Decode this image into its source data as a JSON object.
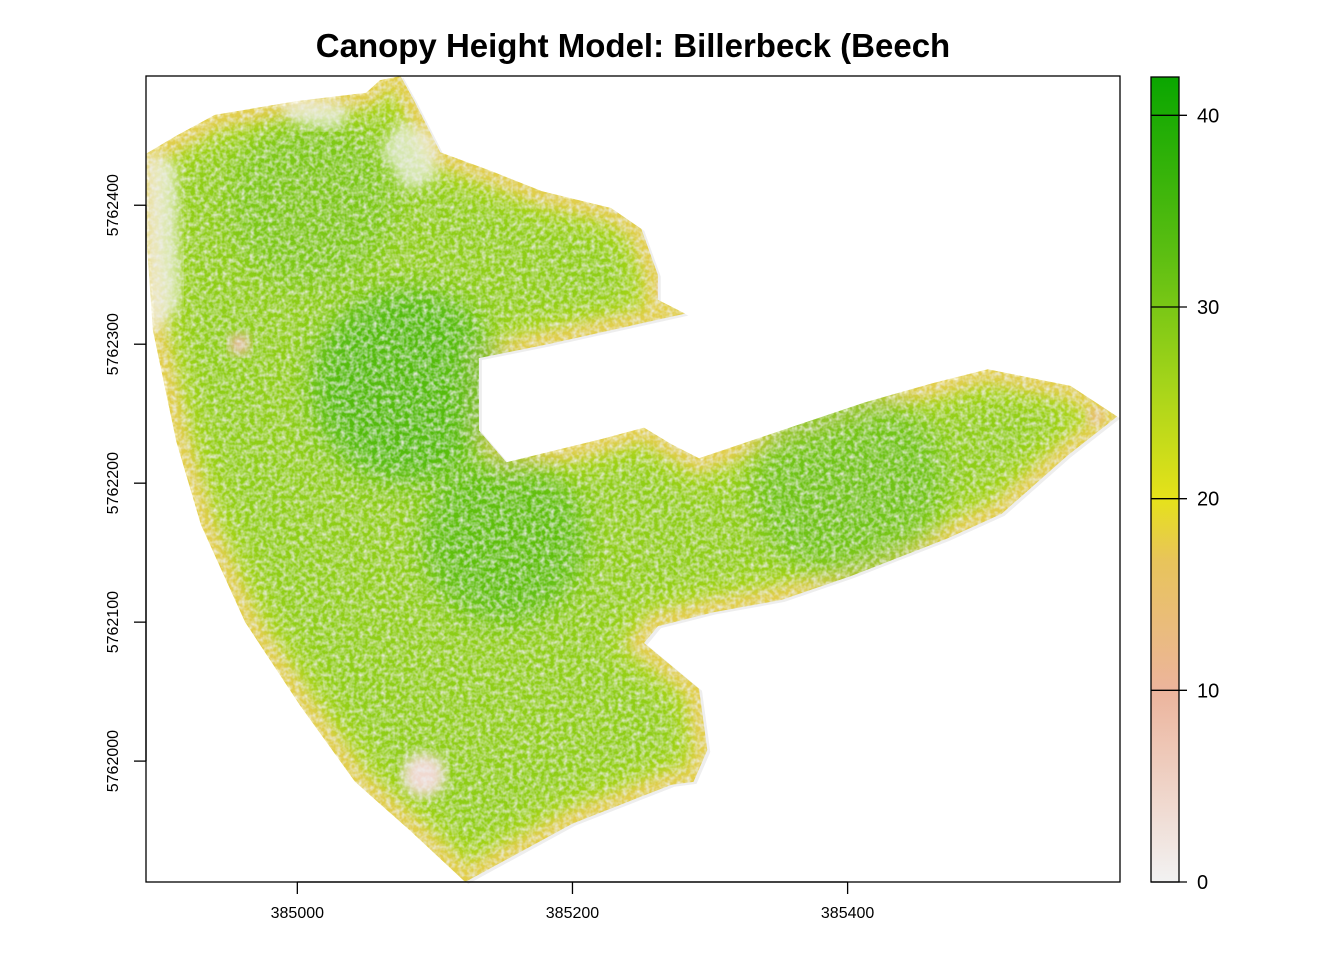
{
  "chart_data": {
    "type": "heatmap",
    "title": "Canopy Height Model: Billerbeck (Beech",
    "xlabel": "",
    "ylabel": "",
    "xlim": [
      384890,
      385598
    ],
    "ylim": [
      5761913,
      5762493
    ],
    "x_ticks": [
      385000,
      385200,
      385400
    ],
    "y_ticks": [
      5762000,
      5762100,
      5762200,
      5762300,
      5762400
    ],
    "x_tick_labels": [
      "385000",
      "385200",
      "385400"
    ],
    "y_tick_labels": [
      "5762000",
      "5762100",
      "5762200",
      "5762300",
      "5762400"
    ],
    "grid": false,
    "legend": {
      "placement": "right",
      "ticks": [
        0,
        10,
        20,
        30,
        40
      ],
      "tick_labels": [
        "0",
        "10",
        "20",
        "30",
        "40"
      ],
      "range": [
        0,
        42
      ],
      "colors": [
        "#f2f2f2",
        "#ecb49c",
        "#e8c45a",
        "#e6e21a",
        "#a4d41a",
        "#5cbe12",
        "#0aa600"
      ]
    },
    "forest_outline": [
      [
        384890,
        5762437
      ],
      [
        384912,
        5762450
      ],
      [
        384940,
        5762465
      ],
      [
        385000,
        5762475
      ],
      [
        385050,
        5762481
      ],
      [
        385060,
        5762490
      ],
      [
        385075,
        5762493
      ],
      [
        385085,
        5762475
      ],
      [
        385104,
        5762438
      ],
      [
        385140,
        5762425
      ],
      [
        385178,
        5762410
      ],
      [
        385228,
        5762398
      ],
      [
        385250,
        5762383
      ],
      [
        385262,
        5762350
      ],
      [
        385262,
        5762332
      ],
      [
        385282,
        5762322
      ],
      [
        385182,
        5762300
      ],
      [
        385132,
        5762290
      ],
      [
        385132,
        5762238
      ],
      [
        385152,
        5762215
      ],
      [
        385222,
        5762232
      ],
      [
        385252,
        5762240
      ],
      [
        385272,
        5762228
      ],
      [
        385292,
        5762218
      ],
      [
        385352,
        5762238
      ],
      [
        385412,
        5762258
      ],
      [
        385462,
        5762272
      ],
      [
        385502,
        5762282
      ],
      [
        385562,
        5762270
      ],
      [
        385596,
        5762248
      ],
      [
        385560,
        5762220
      ],
      [
        385512,
        5762178
      ],
      [
        385472,
        5762160
      ],
      [
        385402,
        5762133
      ],
      [
        385352,
        5762116
      ],
      [
        385302,
        5762107
      ],
      [
        385262,
        5762097
      ],
      [
        385252,
        5762085
      ],
      [
        385292,
        5762052
      ],
      [
        385298,
        5762008
      ],
      [
        385288,
        5761985
      ],
      [
        385272,
        5761983
      ],
      [
        385200,
        5761955
      ],
      [
        385122,
        5761913
      ],
      [
        385082,
        5761950
      ],
      [
        385042,
        5761985
      ],
      [
        385002,
        5762040
      ],
      [
        384962,
        5762100
      ],
      [
        384930,
        5762170
      ],
      [
        384912,
        5762230
      ],
      [
        384895,
        5762310
      ],
      [
        384890,
        5762380
      ]
    ],
    "canopy_gaps": [
      [
        [
          385080,
          5762410
        ],
        [
          385060,
          5762440
        ],
        [
          385075,
          5762460
        ],
        [
          385100,
          5762450
        ],
        [
          385102,
          5762420
        ]
      ],
      [
        [
          384890,
          5762310
        ],
        [
          384890,
          5762437
        ],
        [
          384895,
          5762437
        ],
        [
          384912,
          5762430
        ],
        [
          384915,
          5762330
        ],
        [
          384900,
          5762310
        ]
      ],
      [
        [
          384985,
          5762475
        ],
        [
          385010,
          5762478
        ],
        [
          385040,
          5762470
        ],
        [
          385030,
          5762455
        ],
        [
          385000,
          5762458
        ]
      ]
    ],
    "low_canopy_patches": [
      {
        "x": 385092,
        "y": 5761990,
        "radius": 16,
        "height": 4
      },
      {
        "x": 384958,
        "y": 5762300,
        "radius": 8,
        "height": 9
      },
      {
        "x": 385268,
        "y": 5762340,
        "radius": 6,
        "height": 10
      },
      {
        "x": 385580,
        "y": 5762248,
        "radius": 6,
        "height": 12
      }
    ],
    "dense_canopy_zones": [
      {
        "x": 385080,
        "y": 5762270,
        "radius": 70,
        "height": 38
      },
      {
        "x": 385150,
        "y": 5762160,
        "radius": 60,
        "height": 36
      },
      {
        "x": 385400,
        "y": 5762200,
        "radius": 70,
        "height": 33
      },
      {
        "x": 385010,
        "y": 5762400,
        "radius": 60,
        "height": 31
      }
    ]
  }
}
